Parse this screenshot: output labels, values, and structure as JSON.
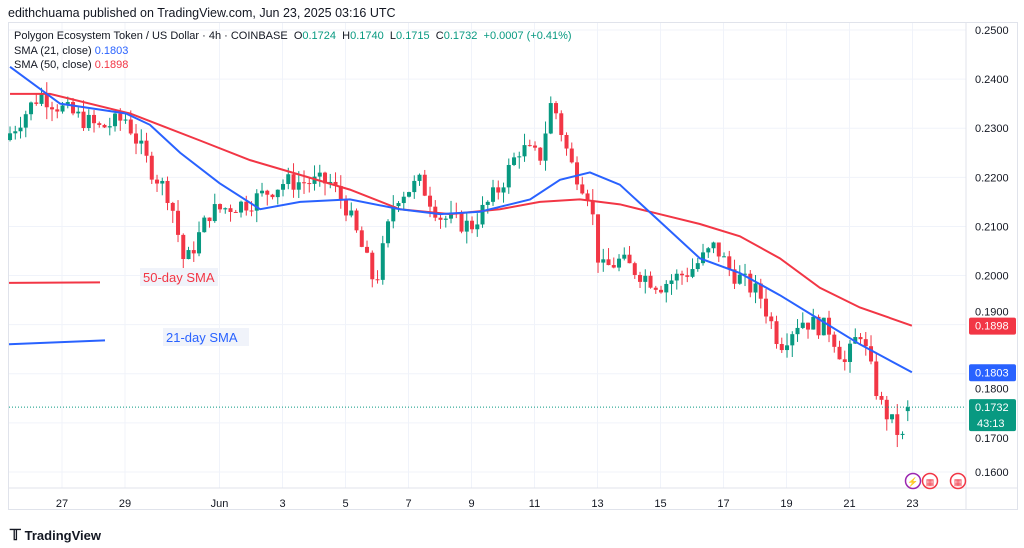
{
  "header": {
    "publisher": "edithchuama published on TradingView.com, Jun 23, 2025 03:16 UTC"
  },
  "legend": {
    "symbol": "Polygon Ecosystem Token / US Dollar · 4h · COINBASE",
    "o_label": "O",
    "o": "0.1724",
    "h_label": "H",
    "h": "0.1740",
    "l_label": "L",
    "l": "0.1715",
    "c_label": "C",
    "c": "0.1732",
    "change": "+0.0007 (+0.41%)",
    "sma21_label": "SMA (21, close)",
    "sma21": "0.1803",
    "sma50_label": "SMA (50, close)",
    "sma50": "0.1898"
  },
  "footer": {
    "brand": "TradingView"
  },
  "colors": {
    "up": "#089981",
    "down": "#f23645",
    "sma21": "#2962ff",
    "sma50": "#f23645"
  },
  "chart_data": {
    "type": "candlestick",
    "x_unit": "days since May 27",
    "xticks": [
      {
        "d": -1.1,
        "label": ""
      },
      {
        "d": 0,
        "label": "27"
      },
      {
        "d": 2,
        "label": "29"
      },
      {
        "d": 5,
        "label": "Jun"
      },
      {
        "d": 7,
        "label": "3"
      },
      {
        "d": 9,
        "label": "5"
      },
      {
        "d": 11,
        "label": "7"
      },
      {
        "d": 13,
        "label": "9"
      },
      {
        "d": 15,
        "label": "11"
      },
      {
        "d": 17,
        "label": "13"
      },
      {
        "d": 19,
        "label": "15"
      },
      {
        "d": 21,
        "label": "17"
      },
      {
        "d": 23,
        "label": "19"
      },
      {
        "d": 25,
        "label": "21"
      },
      {
        "d": 27,
        "label": "23"
      }
    ],
    "yticks": [
      "0.2500",
      "0.2400",
      "0.2300",
      "0.2200",
      "0.2100",
      "0.2000",
      "0.1900",
      "0.1800",
      "0.1700",
      "0.1600"
    ],
    "ylim": [
      0.16,
      0.25
    ],
    "price_path": [
      [
        -1.65,
        0.229
      ],
      [
        -0.7,
        0.237
      ],
      [
        0,
        0.234
      ],
      [
        1.2,
        0.23
      ],
      [
        2.03,
        0.232
      ],
      [
        2.79,
        0.222
      ],
      [
        3.43,
        0.216
      ],
      [
        3.9,
        0.202
      ],
      [
        4.7,
        0.213
      ],
      [
        5.97,
        0.215
      ],
      [
        7.05,
        0.219
      ],
      [
        8.5,
        0.219
      ],
      [
        9.02,
        0.214
      ],
      [
        9.62,
        0.204
      ],
      [
        9.94,
        0.198
      ],
      [
        10.57,
        0.216
      ],
      [
        11.37,
        0.219
      ],
      [
        12.0,
        0.212
      ],
      [
        12.98,
        0.21
      ],
      [
        13.9,
        0.218
      ],
      [
        14.54,
        0.226
      ],
      [
        15.17,
        0.224
      ],
      [
        15.56,
        0.236
      ],
      [
        16.13,
        0.223
      ],
      [
        16.76,
        0.216
      ],
      [
        17.08,
        0.201
      ],
      [
        17.71,
        0.203
      ],
      [
        18.98,
        0.198
      ],
      [
        19.94,
        0.201
      ],
      [
        20.73,
        0.206
      ],
      [
        21.21,
        0.201
      ],
      [
        22.16,
        0.196
      ],
      [
        22.79,
        0.186
      ],
      [
        23.43,
        0.191
      ],
      [
        24.38,
        0.189
      ],
      [
        24.86,
        0.182
      ],
      [
        25.33,
        0.189
      ],
      [
        25.71,
        0.18
      ],
      [
        25.97,
        0.174
      ],
      [
        26.44,
        0.169
      ],
      [
        26.76,
        0.166
      ],
      [
        26.98,
        0.1732
      ]
    ],
    "sma21": [
      [
        -1.65,
        0.2425
      ],
      [
        -0.06,
        0.235
      ],
      [
        2.03,
        0.233
      ],
      [
        2.79,
        0.2307
      ],
      [
        3.75,
        0.225
      ],
      [
        5.0,
        0.2188
      ],
      [
        6.29,
        0.2135
      ],
      [
        7.56,
        0.215
      ],
      [
        9.14,
        0.2155
      ],
      [
        10.73,
        0.2135
      ],
      [
        12.0,
        0.2125
      ],
      [
        13.27,
        0.213
      ],
      [
        14.86,
        0.2155
      ],
      [
        15.81,
        0.2195
      ],
      [
        16.76,
        0.221
      ],
      [
        17.71,
        0.2185
      ],
      [
        18.98,
        0.211
      ],
      [
        20.25,
        0.2035
      ],
      [
        21.52,
        0.2005
      ],
      [
        22.79,
        0.196
      ],
      [
        24.06,
        0.191
      ],
      [
        25.33,
        0.186
      ],
      [
        26.98,
        0.1803
      ]
    ],
    "sma50": [
      [
        -1.65,
        0.237
      ],
      [
        -0.38,
        0.237
      ],
      [
        2.16,
        0.233
      ],
      [
        4.38,
        0.2275
      ],
      [
        5.97,
        0.2235
      ],
      [
        7.56,
        0.2205
      ],
      [
        9.14,
        0.2175
      ],
      [
        10.73,
        0.2135
      ],
      [
        12.32,
        0.2125
      ],
      [
        13.9,
        0.2135
      ],
      [
        15.17,
        0.215
      ],
      [
        16.44,
        0.2155
      ],
      [
        17.71,
        0.2145
      ],
      [
        18.98,
        0.2125
      ],
      [
        20.25,
        0.2105
      ],
      [
        21.52,
        0.208
      ],
      [
        22.79,
        0.2035
      ],
      [
        24.06,
        0.1975
      ],
      [
        25.33,
        0.1935
      ],
      [
        26.98,
        0.1898
      ]
    ],
    "last_price": {
      "value": "0.1732",
      "countdown": "43:13"
    },
    "sma21_tag": "0.1803",
    "sma50_tag": "0.1898",
    "annotations": [
      {
        "text": "50-day SMA",
        "color": "#f23645"
      },
      {
        "text": "21-day SMA",
        "color": "#2962ff"
      }
    ]
  }
}
